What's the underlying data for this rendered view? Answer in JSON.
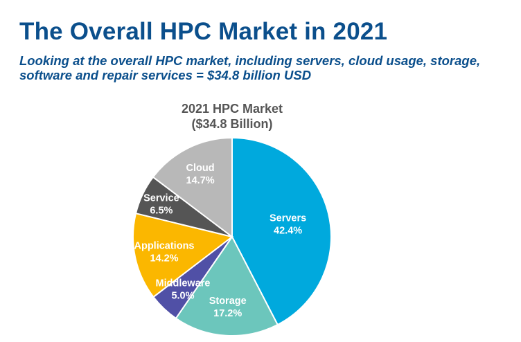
{
  "header": {
    "title": "The Overall HPC Market in 2021",
    "subtitle": "Looking at the overall HPC market, including servers, cloud usage, storage, software and repair services = $34.8 billion USD"
  },
  "chart_data": {
    "type": "pie",
    "title": "2021 HPC Market",
    "subtitle": "($34.8 Billion)",
    "slices": [
      {
        "name": "Servers",
        "value": 42.4,
        "label": "42.4%",
        "color": "#00a9dd"
      },
      {
        "name": "Storage",
        "value": 17.2,
        "label": "17.2%",
        "color": "#6cc6bc"
      },
      {
        "name": "Middleware",
        "value": 5.0,
        "label": "5.0%",
        "color": "#5050a6"
      },
      {
        "name": "Applications",
        "value": 14.2,
        "label": "14.2%",
        "color": "#fbb700"
      },
      {
        "name": "Service",
        "value": 6.5,
        "label": "6.5%",
        "color": "#555555"
      },
      {
        "name": "Cloud",
        "value": 14.7,
        "label": "14.7%",
        "color": "#b8b8b8"
      }
    ]
  }
}
